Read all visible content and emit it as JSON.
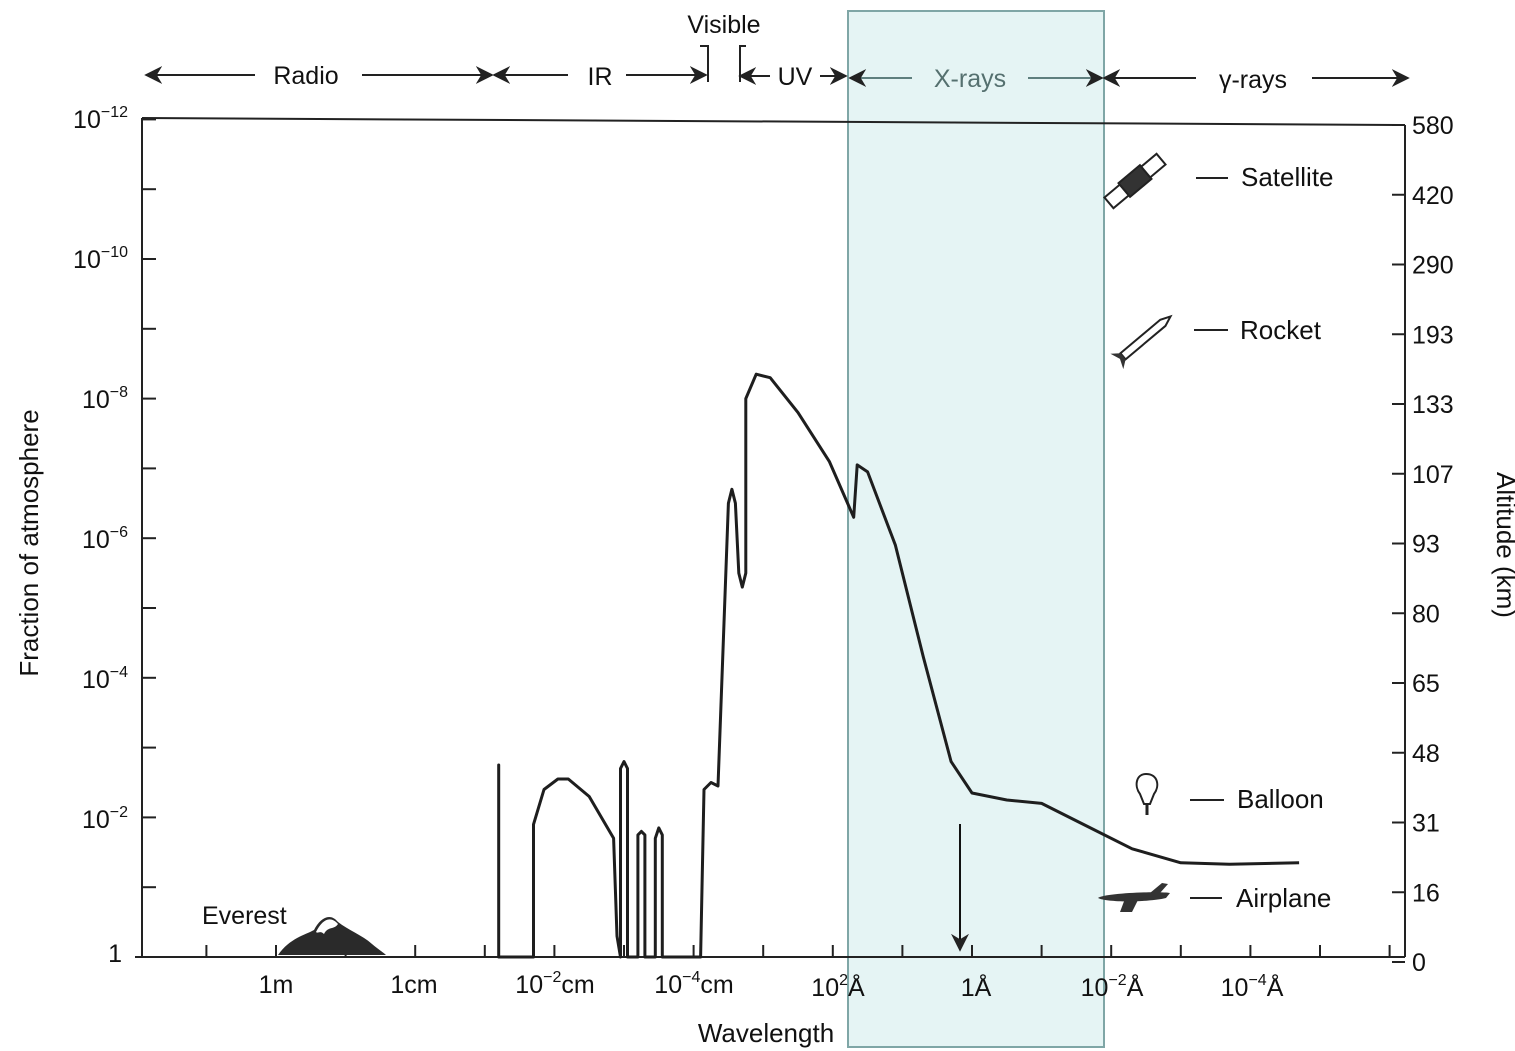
{
  "chart_data": {
    "type": "line",
    "title": "",
    "xlabel": "Wavelength",
    "ylabel_left": "Fraction of atmosphere",
    "ylabel_right": "Altitude (km)",
    "x_ticks": [
      {
        "label": "1m",
        "lambda_m": 1
      },
      {
        "label": "1cm",
        "lambda_m": 0.01
      },
      {
        "label": "10−2cm",
        "lambda_m": 0.0001
      },
      {
        "label": "10−4cm",
        "lambda_m": 1e-06
      },
      {
        "label": "102Å",
        "lambda_m": 1e-08
      },
      {
        "label": "1Å",
        "lambda_m": 1e-10
      },
      {
        "label": "10−2Å",
        "lambda_m": 1e-12
      },
      {
        "label": "10−4Å",
        "lambda_m": 1e-14
      }
    ],
    "y_left_ticks": [
      {
        "label": "10−12",
        "value": 1e-12
      },
      {
        "label": "10−10",
        "value": 1e-10
      },
      {
        "label": "10−8",
        "value": 1e-08
      },
      {
        "label": "10−6",
        "value": 1e-06
      },
      {
        "label": "10−4",
        "value": 0.0001
      },
      {
        "label": "10−2",
        "value": 0.01
      },
      {
        "label": "1",
        "value": 1
      }
    ],
    "y_right_ticks": [
      {
        "label": "580",
        "value": 580
      },
      {
        "label": "420",
        "value": 420
      },
      {
        "label": "290",
        "value": 290
      },
      {
        "label": "193",
        "value": 193
      },
      {
        "label": "133",
        "value": 133
      },
      {
        "label": "107",
        "value": 107
      },
      {
        "label": "93",
        "value": 93
      },
      {
        "label": "80",
        "value": 80
      },
      {
        "label": "65",
        "value": 65
      },
      {
        "label": "48",
        "value": 48
      },
      {
        "label": "31",
        "value": 31
      },
      {
        "label": "16",
        "value": 16
      },
      {
        "label": "0",
        "value": 0
      }
    ],
    "bands": [
      {
        "label": "Radio"
      },
      {
        "label": "IR"
      },
      {
        "label": "Visible"
      },
      {
        "label": "UV"
      },
      {
        "label": "X-rays"
      },
      {
        "label": "γ-rays"
      }
    ],
    "vehicles": [
      {
        "label": "Satellite",
        "icon": "satellite-icon"
      },
      {
        "label": "Rocket",
        "icon": "rocket-icon"
      },
      {
        "label": "Balloon",
        "icon": "balloon-icon"
      },
      {
        "label": "Airplane",
        "icon": "airplane-icon"
      }
    ],
    "landmark": {
      "label": "Everest",
      "icon": "mountain-icon"
    },
    "series": [
      {
        "values_note_units": "log10(lambda in m), log10(fraction of atmosphere)",
        "points": [
          [
            -3.2,
            0
          ],
          [
            -3.2,
            -2.75
          ],
          [
            -3.2,
            0
          ],
          [
            -3.7,
            0
          ],
          [
            -3.7,
            -1.9
          ],
          [
            -3.85,
            -2.4
          ],
          [
            -4.05,
            -2.55
          ],
          [
            -4.2,
            -2.55
          ],
          [
            -4.5,
            -2.3
          ],
          [
            -4.85,
            -1.7
          ],
          [
            -4.9,
            -0.3
          ],
          [
            -4.95,
            0
          ],
          [
            -4.95,
            -2.7
          ],
          [
            -5.0,
            -2.8
          ],
          [
            -5.05,
            -2.7
          ],
          [
            -5.05,
            0
          ],
          [
            -5.2,
            0
          ],
          [
            -5.2,
            -1.75
          ],
          [
            -5.25,
            -1.8
          ],
          [
            -5.3,
            -1.75
          ],
          [
            -5.3,
            0
          ],
          [
            -5.45,
            0
          ],
          [
            -5.45,
            -1.7
          ],
          [
            -5.5,
            -1.85
          ],
          [
            -5.55,
            -1.75
          ],
          [
            -5.55,
            0
          ],
          [
            -6.1,
            0
          ],
          [
            -6.15,
            -2.4
          ],
          [
            -6.25,
            -2.5
          ],
          [
            -6.35,
            -2.45
          ],
          [
            -6.5,
            -6.5
          ],
          [
            -6.55,
            -6.7
          ],
          [
            -6.6,
            -6.5
          ],
          [
            -6.65,
            -5.5
          ],
          [
            -6.7,
            -5.3
          ],
          [
            -6.75,
            -5.5
          ],
          [
            -6.75,
            -8.0
          ],
          [
            -6.9,
            -8.35
          ],
          [
            -7.1,
            -8.3
          ],
          [
            -7.5,
            -7.8
          ],
          [
            -7.95,
            -7.1
          ],
          [
            -8.3,
            -6.3
          ],
          [
            -8.35,
            -7.05
          ],
          [
            -8.5,
            -6.95
          ],
          [
            -8.9,
            -5.9
          ],
          [
            -9.3,
            -4.3
          ],
          [
            -9.7,
            -2.8
          ],
          [
            -10.0,
            -2.35
          ],
          [
            -10.5,
            -2.25
          ],
          [
            -11.0,
            -2.2
          ],
          [
            -11.6,
            -1.9
          ],
          [
            -12.3,
            -1.55
          ],
          [
            -13.0,
            -1.35
          ],
          [
            -13.7,
            -1.33
          ],
          [
            -14.7,
            -1.35
          ]
        ]
      }
    ],
    "grid": false,
    "legend": "none",
    "highlight_band": "X-rays",
    "colors": {
      "line": "#1e1e1e",
      "highlight_fill": "#d4ecec",
      "highlight_stroke": "#7fa6a6",
      "arrow": "#111111"
    }
  }
}
